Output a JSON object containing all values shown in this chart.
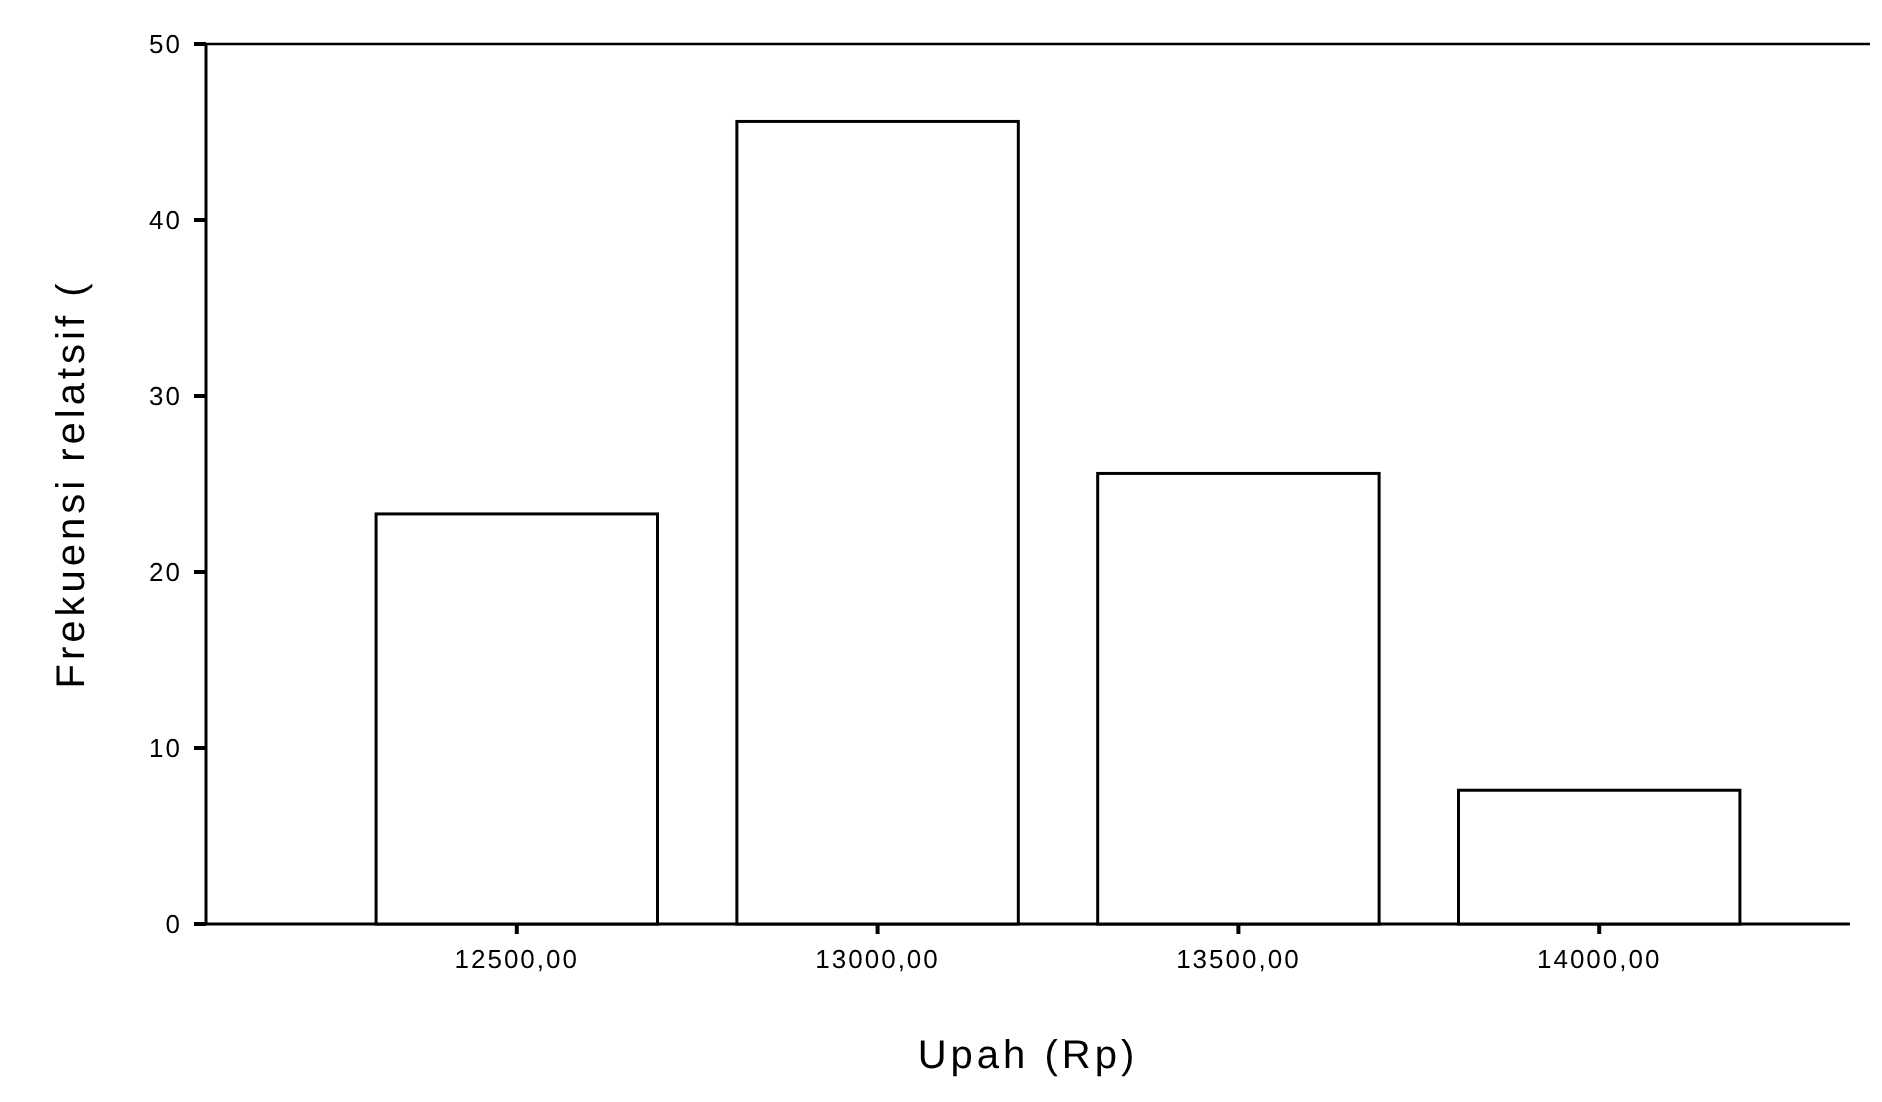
{
  "chart_data": {
    "type": "bar",
    "xlabel": "Upah (Rp)",
    "ylabel": "Frekuensi relatsif (",
    "categories": [
      "12500,00",
      "13000,00",
      "13500,00",
      "14000,00"
    ],
    "values": [
      23.3,
      45.6,
      25.6,
      7.6
    ],
    "color": "#ffffff",
    "ylim": [
      0,
      50
    ],
    "yticks": [
      0,
      10,
      20,
      30,
      40,
      50
    ],
    "grid": false
  }
}
